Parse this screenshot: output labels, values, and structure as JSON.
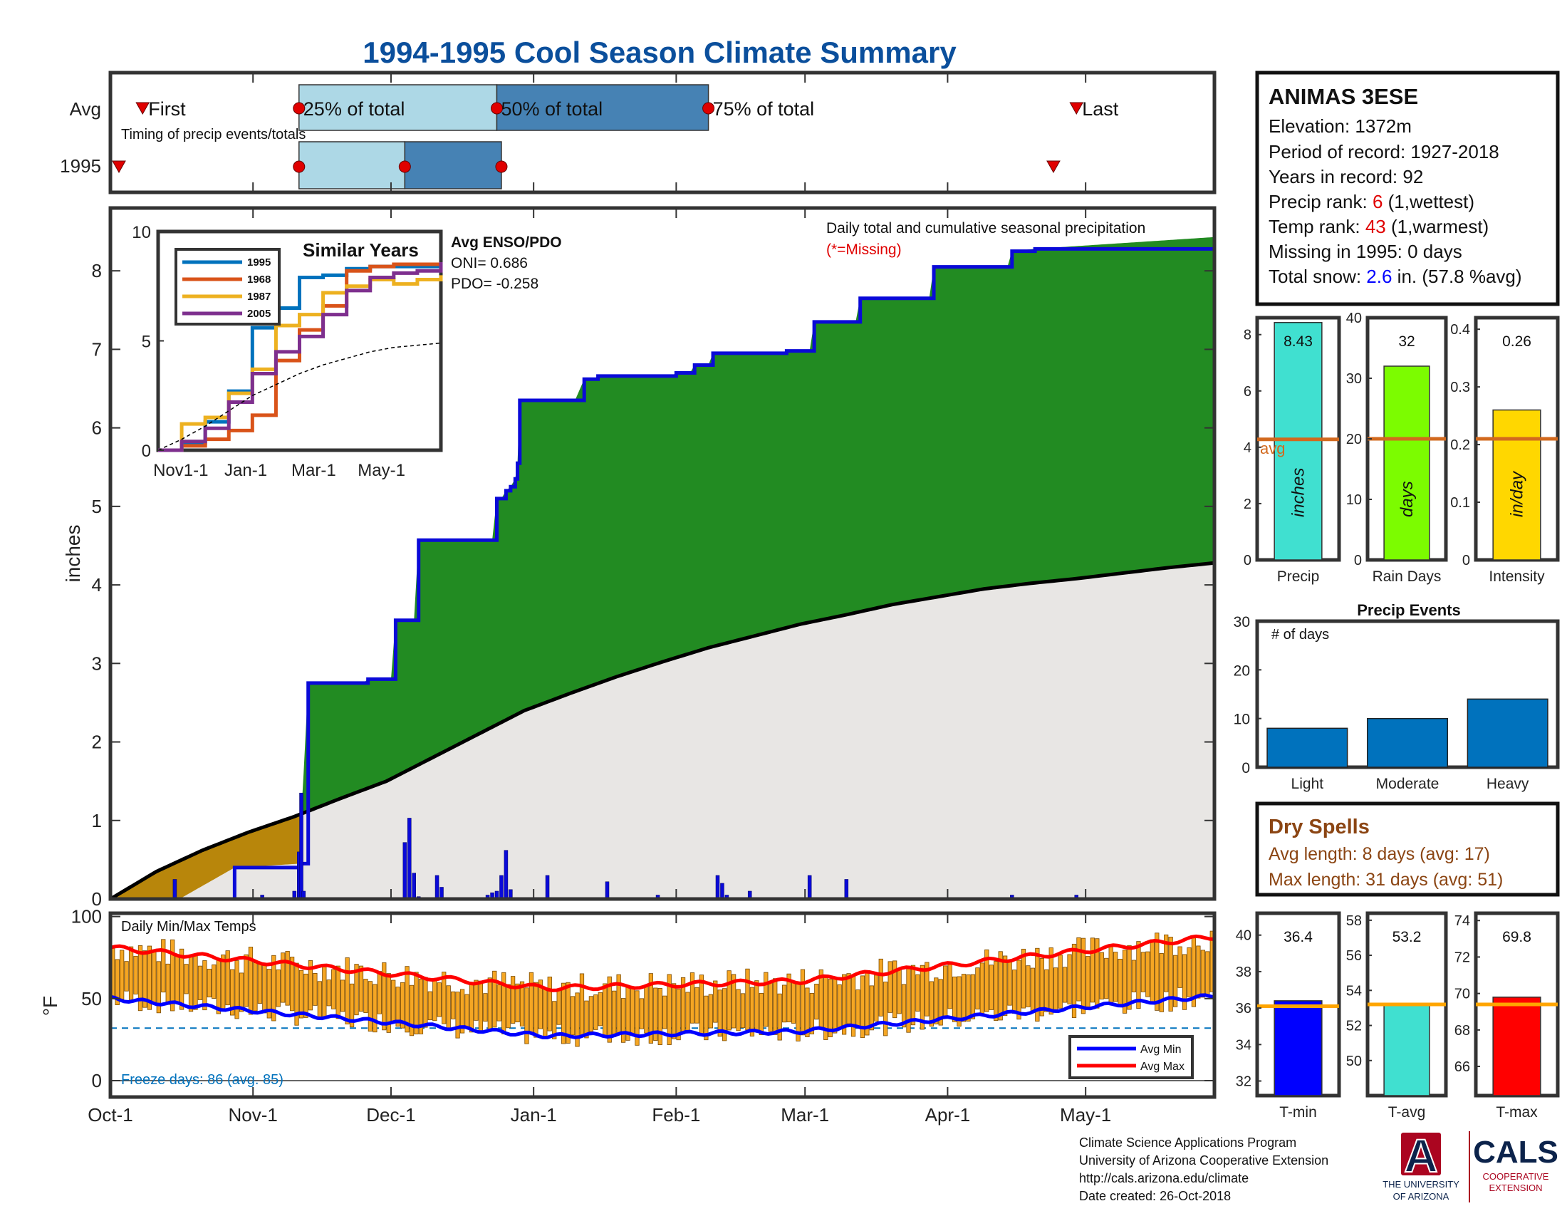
{
  "title": "1994-1995 Cool Season Climate Summary",
  "colors": {
    "title": "#0b4f9c",
    "precip_green": "#228b22",
    "avg_gray": "#e8e6e4",
    "deficit_brown": "#b8860b",
    "cumulative_blue": "#0a0ad8",
    "temp_bar": "#f5a623",
    "avg_line": "#d2691e",
    "light_blue": "#add8e6",
    "mid_blue": "#4682b4",
    "red_marker": "#e00000",
    "dry_brown": "#8b4513",
    "ua_navy": "#0c234b",
    "ua_red": "#ab0520"
  },
  "timing": {
    "row_avg": "Avg",
    "row_year": "1995",
    "first_label": "First",
    "p25_label": "25% of total",
    "p50_label": "50% of total",
    "p75_label": "75% of total",
    "last_label": "Last",
    "caption": "Timing of precip events/totals",
    "avg_days": {
      "first": 7,
      "p25": 41,
      "p50": 84,
      "p75": 130,
      "last": 210
    },
    "year_days": {
      "first": 0,
      "p25": 41,
      "p50": 64,
      "p75": 85,
      "last": 205
    }
  },
  "station": {
    "name": "ANIMAS 3ESE",
    "elevation": "Elevation: 1372m",
    "period": "Period of record: 1927-2018",
    "years": "Years in record: 92",
    "precip_rank_pre": "Precip rank: ",
    "precip_rank_val": "6",
    "precip_rank_post": " (1,wettest)",
    "temp_rank_pre": "Temp rank: ",
    "temp_rank_val": "43",
    "temp_rank_post": " (1,warmest)",
    "missing": "Missing in 1995: 0 days",
    "snow_pre": "Total snow: ",
    "snow_val": "2.6",
    "snow_post": " in. (57.8 %avg)"
  },
  "main_chart": {
    "ylabel": "inches",
    "legend_title": "Daily total and cumulative seasonal precipitation",
    "missing_note": "(*=Missing)",
    "y_ticks": [
      "0",
      "1",
      "2",
      "3",
      "4",
      "5",
      "6",
      "7",
      "8"
    ],
    "x_ticks": [
      "Oct-1",
      "Nov-1",
      "Dec-1",
      "Jan-1",
      "Feb-1",
      "Mar-1",
      "Apr-1",
      "May-1"
    ]
  },
  "chart_data": [
    {
      "type": "area",
      "title": "Daily total and cumulative seasonal precipitation",
      "ylabel": "inches",
      "ylim": [
        0,
        8.8
      ],
      "x_unit": "day of season (Oct-1 = 0)",
      "series": [
        {
          "name": "1995",
          "x": [
            0,
            15,
            27,
            28,
            41,
            43,
            55,
            56,
            61,
            62,
            66,
            67,
            83,
            84,
            85,
            86,
            87,
            88,
            88.5,
            89,
            101,
            103,
            105,
            106,
            122,
            123,
            126,
            127,
            130,
            131,
            133,
            134,
            146,
            147,
            152,
            153,
            162,
            163,
            178,
            179,
            195,
            196,
            201,
            240
          ],
          "y": [
            0,
            0,
            0.4,
            0.4,
            0.45,
            2.75,
            2.75,
            2.8,
            2.8,
            3.55,
            3.55,
            4.57,
            4.57,
            5.1,
            5.1,
            5.2,
            5.25,
            5.35,
            5.55,
            6.35,
            6.35,
            6.62,
            6.62,
            6.66,
            6.66,
            6.7,
            6.7,
            6.8,
            6.8,
            6.95,
            6.95,
            6.95,
            6.95,
            6.98,
            6.98,
            7.35,
            7.35,
            7.65,
            7.65,
            8.05,
            8.05,
            8.25,
            8.28,
            8.43
          ]
        },
        {
          "name": "Avg",
          "x": [
            0,
            10,
            20,
            30,
            40,
            50,
            60,
            70,
            80,
            90,
            100,
            110,
            120,
            130,
            140,
            150,
            160,
            170,
            180,
            190,
            200,
            210,
            220,
            230,
            240
          ],
          "y": [
            0,
            0.35,
            0.62,
            0.85,
            1.05,
            1.28,
            1.5,
            1.8,
            2.1,
            2.4,
            2.62,
            2.83,
            3.02,
            3.2,
            3.35,
            3.5,
            3.62,
            3.75,
            3.85,
            3.95,
            4.02,
            4.08,
            4.15,
            4.22,
            4.28
          ]
        }
      ],
      "daily_bars": {
        "x": [
          14,
          33,
          40,
          41,
          41.5,
          42,
          64,
          65,
          66,
          67,
          71,
          72,
          82,
          83,
          84,
          85,
          86,
          87,
          95,
          108,
          119,
          132,
          133,
          134,
          139,
          152,
          160,
          196,
          210
        ],
        "y": [
          0.25,
          0.05,
          0.1,
          0.6,
          1.35,
          0.1,
          0.72,
          1.03,
          0.33,
          0.03,
          0.3,
          0.15,
          0.05,
          0.08,
          0.1,
          0.3,
          0.62,
          0.12,
          0.3,
          0.22,
          0.05,
          0.3,
          0.2,
          0.05,
          0.1,
          0.3,
          0.25,
          0.05,
          0.05
        ]
      }
    },
    {
      "type": "line",
      "title": "Similar Years",
      "ylim": [
        0,
        10
      ],
      "x_ticks": [
        "Nov1-1",
        "Jan-1",
        "Mar-1",
        "May-1"
      ],
      "y_ticks": [
        "0",
        "5",
        "10"
      ],
      "series": [
        {
          "name": "1995",
          "values": [
            0,
            0.3,
            1.3,
            2.7,
            5.6,
            6.5,
            7.9,
            8.0,
            8.3,
            8.4,
            8.4,
            8.4,
            8.43
          ],
          "color": "#0072bd"
        },
        {
          "name": "1968",
          "values": [
            0,
            0.2,
            0.5,
            0.9,
            1.6,
            4.1,
            5.5,
            6.6,
            8.2,
            8.4,
            8.5,
            8.5,
            8.5
          ],
          "color": "#d95319"
        },
        {
          "name": "1987",
          "values": [
            0,
            1.2,
            1.5,
            2.6,
            3.7,
            5.7,
            6.2,
            7.2,
            7.5,
            7.8,
            7.6,
            7.8,
            8.0
          ],
          "color": "#edb120"
        },
        {
          "name": "2005",
          "values": [
            0,
            0.4,
            1.0,
            2.2,
            3.5,
            4.5,
            5.2,
            6.2,
            7.3,
            7.9,
            8.1,
            8.2,
            8.6
          ],
          "color": "#7e2f8e"
        },
        {
          "name": "",
          "values": [
            0,
            0.5,
            1.1,
            1.8,
            2.5,
            3.0,
            3.5,
            3.9,
            4.2,
            4.5,
            4.7,
            4.8,
            4.9
          ],
          "color": "#000000",
          "dashed": true
        }
      ]
    },
    {
      "type": "bar",
      "title": "",
      "categories": [
        "Precip"
      ],
      "values": [
        8.43
      ],
      "avg": 4.28,
      "ylim": [
        0,
        8.6
      ],
      "y_ticks": [
        "0",
        "2",
        "4",
        "6",
        "8"
      ],
      "bar_label": "8.43",
      "unit": "inches",
      "avg_label": "avg",
      "color": "#40e0d0"
    },
    {
      "type": "bar",
      "title": "",
      "categories": [
        "Rain Days"
      ],
      "values": [
        32
      ],
      "avg": 20,
      "ylim": [
        0,
        40
      ],
      "y_ticks": [
        "0",
        "10",
        "20",
        "30",
        "40"
      ],
      "bar_label": "32",
      "unit": "days",
      "color": "#7cfc00"
    },
    {
      "type": "bar",
      "title": "",
      "categories": [
        "Intensity"
      ],
      "values": [
        0.26
      ],
      "avg": 0.21,
      "ylim": [
        0,
        0.42
      ],
      "y_ticks": [
        "0",
        "0.1",
        "0.2",
        "0.3",
        "0.4"
      ],
      "bar_label": "0.26",
      "unit": "in/day",
      "color": "#ffd700"
    },
    {
      "type": "bar",
      "title": "Precip Events",
      "ylabel": "# of days",
      "categories": [
        "Light",
        "Moderate",
        "Heavy"
      ],
      "values": [
        8,
        10,
        14
      ],
      "ylim": [
        0,
        30
      ],
      "y_ticks": [
        "0",
        "10",
        "20",
        "30"
      ],
      "color": "#0072bd"
    },
    {
      "type": "bar",
      "title": "Daily Min/Max Temps",
      "ylabel": "°F",
      "ylim": [
        -10,
        102
      ],
      "y_ticks": [
        "0",
        "50",
        "100"
      ],
      "series": [
        {
          "name": "Avg Min",
          "color": "#0000ff"
        },
        {
          "name": "Avg Max",
          "color": "#ff0000"
        }
      ],
      "freeze_line": 32
    },
    {
      "type": "bar",
      "categories": [
        "T-min"
      ],
      "values": [
        36.4
      ],
      "avg": 36.1,
      "ylim": [
        31.2,
        41.2
      ],
      "y_ticks": [
        "32",
        "34",
        "36",
        "38",
        "40"
      ],
      "bar_label": "36.4",
      "color": "#0000ff"
    },
    {
      "type": "bar",
      "categories": [
        "T-avg"
      ],
      "values": [
        53.2
      ],
      "avg": 53.2,
      "ylim": [
        48.0,
        58.4
      ],
      "y_ticks": [
        "50",
        "52",
        "54",
        "56",
        "58"
      ],
      "bar_label": "53.2",
      "color": "#40e0d0"
    },
    {
      "type": "bar",
      "categories": [
        "T-max"
      ],
      "values": [
        69.8
      ],
      "avg": 69.4,
      "ylim": [
        64.4,
        74.4
      ],
      "y_ticks": [
        "66",
        "68",
        "70",
        "72",
        "74"
      ],
      "bar_label": "69.8",
      "color": "#ff0000"
    }
  ],
  "inset": {
    "title": "Similar Years",
    "legend": [
      "1995",
      "1968",
      "1987",
      "2005"
    ],
    "enso_title": "Avg ENSO/PDO",
    "oni": "ONI= 0.686",
    "pdo": "PDO= -0.258"
  },
  "dry_spells": {
    "title": "Dry Spells",
    "avg_length": "Avg length: 8 days (avg: 17)",
    "max_length": "Max length: 31 days (avg: 51)"
  },
  "temps": {
    "title": "Daily Min/Max Temps",
    "ylabel": "°F",
    "freeze": "Freeze days: 86 (avg. 85)",
    "legend_min": "Avg Min",
    "legend_max": "Avg Max"
  },
  "footer": {
    "line1": "Climate Science Applications Program",
    "line2": "University of Arizona Cooperative Extension",
    "line3": "http://cals.arizona.edu/climate",
    "line4": " Date created: 26-Oct-2018",
    "ua_1": "THE UNIVERSITY",
    "ua_2": "OF ARIZONA",
    "cals": "CALS",
    "cals_1": "COOPERATIVE",
    "cals_2": "EXTENSION",
    "ua_mark": "A"
  }
}
